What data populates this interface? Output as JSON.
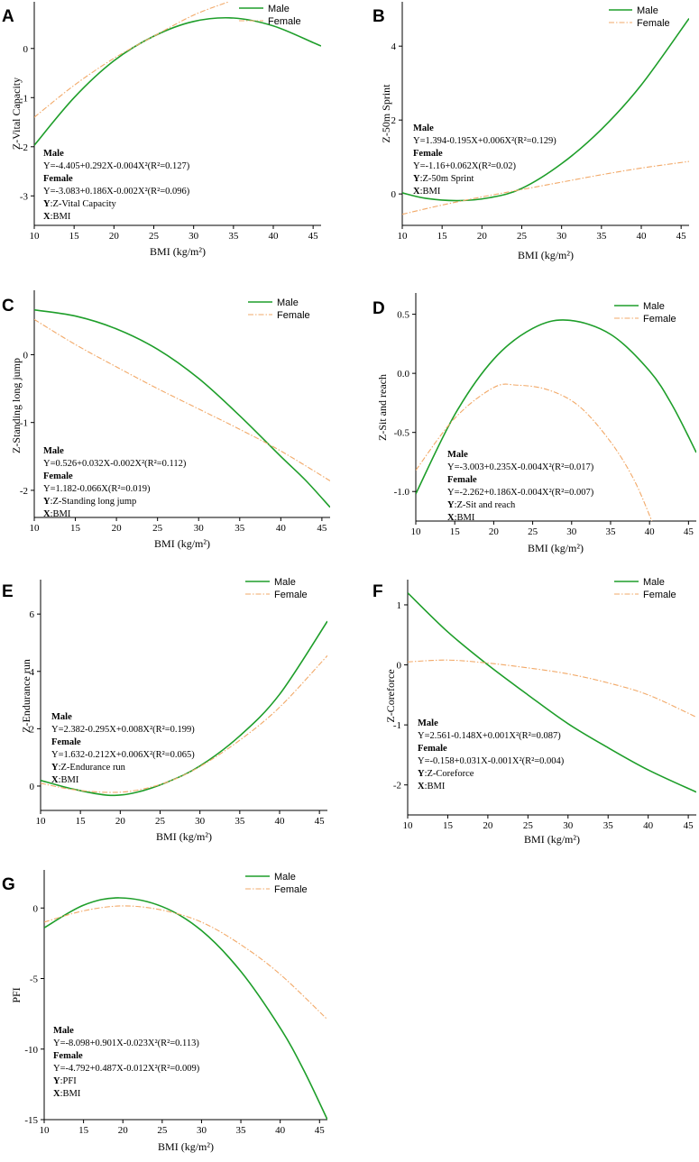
{
  "chart_data": [
    {
      "panel": "A",
      "type": "line",
      "ylabel": "Z-Vital Capacity",
      "xlabel": "BMI (kg/m²)",
      "xlim": [
        10,
        46
      ],
      "ylim": [
        -3.6,
        0.95
      ],
      "xticks": [
        "10",
        "15",
        "20",
        "25",
        "30",
        "35",
        "40",
        "45"
      ],
      "yticks": [
        "-3",
        "-2",
        "-1",
        "0"
      ],
      "legend": [
        "Male",
        "Female"
      ],
      "series": [
        {
          "name": "Male",
          "points": [
            [
              10,
              -1.97
            ],
            [
              15,
              -1.0
            ],
            [
              20,
              -0.25
            ],
            [
              25,
              0.25
            ],
            [
              30,
              0.55
            ],
            [
              35,
              0.62
            ],
            [
              40,
              0.46
            ],
            [
              45,
              0.12
            ],
            [
              46,
              0.05
            ]
          ]
        },
        {
          "name": "Female",
          "points": [
            [
              10,
              -1.4
            ],
            [
              15,
              -0.75
            ],
            [
              20,
              -0.2
            ],
            [
              25,
              0.25
            ],
            [
              30,
              0.68
            ],
            [
              34.4,
              0.95
            ]
          ]
        }
      ],
      "annotations": {
        "male_title": "Male",
        "male_eq": "Y=-4.405+0.292X-0.004X²(R²=0.127)",
        "female_title": "Female",
        "female_eq": "Y=-3.083+0.186X-0.002X²(R²=0.096)",
        "y_key": "Y",
        "y_text": ":Z-Vital Capacity",
        "x_key": "X",
        "x_text": ":BMI"
      }
    },
    {
      "panel": "B",
      "type": "line",
      "ylabel": "Z-50m Sprint",
      "xlabel": "BMI (kg/m²)",
      "xlim": [
        10,
        46
      ],
      "ylim": [
        -0.85,
        5.2
      ],
      "xticks": [
        "10",
        "15",
        "20",
        "25",
        "30",
        "35",
        "40",
        "45"
      ],
      "yticks": [
        "0",
        "2",
        "4"
      ],
      "legend": [
        "Male",
        "Female"
      ],
      "series": [
        {
          "name": "Male",
          "points": [
            [
              10,
              0.03
            ],
            [
              13,
              -0.12
            ],
            [
              17,
              -0.18
            ],
            [
              21,
              -0.1
            ],
            [
              25,
              0.15
            ],
            [
              30,
              0.82
            ],
            [
              35,
              1.75
            ],
            [
              40,
              2.95
            ],
            [
              46,
              4.75
            ]
          ]
        },
        {
          "name": "Female",
          "points": [
            [
              10,
              -0.55
            ],
            [
              15,
              -0.3
            ],
            [
              20,
              -0.08
            ],
            [
              25,
              0.12
            ],
            [
              30,
              0.32
            ],
            [
              35,
              0.52
            ],
            [
              40,
              0.7
            ],
            [
              46,
              0.88
            ]
          ]
        }
      ],
      "annotations": {
        "male_title": "Male",
        "male_eq": "Y=1.394-0.195X+0.006X²(R²=0.129)",
        "female_title": "Female",
        "female_eq": "Y=-1.16+0.062X(R²=0.02)",
        "y_key": "Y",
        "y_text": ":Z-50m Sprint",
        "x_key": "X",
        "x_text": ":BMI"
      }
    },
    {
      "panel": "C",
      "type": "line",
      "ylabel": "Z-Standing long jump",
      "xlabel": "BMI (kg/m²)",
      "xlim": [
        10,
        46
      ],
      "ylim": [
        -2.4,
        0.95
      ],
      "xticks": [
        "10",
        "15",
        "20",
        "25",
        "30",
        "35",
        "40",
        "45"
      ],
      "yticks": [
        "-2",
        "-1",
        "0"
      ],
      "legend": [
        "Male",
        "Female"
      ],
      "series": [
        {
          "name": "Male",
          "points": [
            [
              10,
              0.66
            ],
            [
              15,
              0.57
            ],
            [
              20,
              0.38
            ],
            [
              25,
              0.08
            ],
            [
              30,
              -0.35
            ],
            [
              35,
              -0.9
            ],
            [
              40,
              -1.5
            ],
            [
              43,
              -1.85
            ],
            [
              46,
              -2.25
            ]
          ]
        },
        {
          "name": "Female",
          "points": [
            [
              10,
              0.52
            ],
            [
              15,
              0.15
            ],
            [
              20,
              -0.18
            ],
            [
              25,
              -0.5
            ],
            [
              30,
              -0.8
            ],
            [
              35,
              -1.1
            ],
            [
              40,
              -1.42
            ],
            [
              46,
              -1.86
            ]
          ]
        }
      ],
      "annotations": {
        "male_title": "Male",
        "male_eq": "Y=0.526+0.032X-0.002X²(R²=0.112)",
        "female_title": "Female",
        "female_eq": "Y=1.182-0.066X(R²=0.019)",
        "y_key": "Y",
        "y_text": ":Z-Standing long jump",
        "x_key": "X",
        "x_text": ":BMI"
      }
    },
    {
      "panel": "D",
      "type": "line",
      "ylabel": "Z-Sit and reach",
      "xlabel": "BMI (kg/m²)",
      "xlim": [
        10,
        46
      ],
      "ylim": [
        -1.25,
        0.68
      ],
      "xticks": [
        "10",
        "15",
        "20",
        "25",
        "30",
        "35",
        "40",
        "45"
      ],
      "yticks": [
        "-1.0",
        "-0.5",
        "0.0",
        "0.5"
      ],
      "legend": [
        "Male",
        "Female"
      ],
      "series": [
        {
          "name": "Male",
          "points": [
            [
              10,
              -1.02
            ],
            [
              15,
              -0.35
            ],
            [
              20,
              0.12
            ],
            [
              25,
              0.38
            ],
            [
              29.5,
              0.45
            ],
            [
              35,
              0.33
            ],
            [
              40,
              0.02
            ],
            [
              43,
              -0.28
            ],
            [
              46,
              -0.67
            ]
          ]
        },
        {
          "name": "Female",
          "points": [
            [
              10,
              -0.82
            ],
            [
              15,
              -0.38
            ],
            [
              20,
              -0.12
            ],
            [
              23,
              -0.1
            ],
            [
              27,
              -0.14
            ],
            [
              31,
              -0.28
            ],
            [
              35,
              -0.58
            ],
            [
              38,
              -0.9
            ],
            [
              40.3,
              -1.25
            ]
          ]
        }
      ],
      "annotations": {
        "male_title": "Male",
        "male_eq": "Y=-3.003+0.235X-0.004X²(R²=0.017)",
        "female_title": "Female",
        "female_eq": "Y=-2.262+0.186X-0.004X²(R²=0.007)",
        "y_key": "Y",
        "y_text": ":Z-Sit and reach",
        "x_key": "X",
        "x_text": ":BMI"
      }
    },
    {
      "panel": "E",
      "type": "line",
      "ylabel": "Z-Endurance run",
      "xlabel": "BMI (kg/m²)",
      "xlim": [
        10,
        46
      ],
      "ylim": [
        -0.85,
        7.2
      ],
      "xticks": [
        "10",
        "15",
        "20",
        "25",
        "30",
        "35",
        "40",
        "45"
      ],
      "yticks": [
        "0",
        "2",
        "4",
        "6"
      ],
      "legend": [
        "Male",
        "Female"
      ],
      "series": [
        {
          "name": "Male",
          "points": [
            [
              10,
              0.2
            ],
            [
              14,
              -0.1
            ],
            [
              18.5,
              -0.32
            ],
            [
              22,
              -0.22
            ],
            [
              26,
              0.15
            ],
            [
              30,
              0.7
            ],
            [
              35,
              1.75
            ],
            [
              40,
              3.2
            ],
            [
              46,
              5.75
            ]
          ]
        },
        {
          "name": "Female",
          "points": [
            [
              10,
              0.1
            ],
            [
              14,
              -0.12
            ],
            [
              18.5,
              -0.22
            ],
            [
              22,
              -0.15
            ],
            [
              26,
              0.15
            ],
            [
              30,
              0.68
            ],
            [
              35,
              1.6
            ],
            [
              40,
              2.75
            ],
            [
              46,
              4.55
            ]
          ]
        }
      ],
      "annotations": {
        "male_title": "Male",
        "male_eq": "Y=2.382-0.295X+0.008X²(R²=0.199)",
        "female_title": "Female",
        "female_eq": "Y=1.632-0.212X+0.006X²(R²=0.065)",
        "y_key": "Y",
        "y_text": ":Z-Endurance run",
        "x_key": "X",
        "x_text": ":BMI"
      }
    },
    {
      "panel": "F",
      "type": "line",
      "ylabel": "Z-Coreforce",
      "xlabel": "BMI (kg/m²)",
      "xlim": [
        10,
        46
      ],
      "ylim": [
        -2.5,
        1.42
      ],
      "xticks": [
        "10",
        "15",
        "20",
        "25",
        "30",
        "35",
        "40",
        "45"
      ],
      "yticks": [
        "-2",
        "-1",
        "0",
        "1"
      ],
      "legend": [
        "Male",
        "Female"
      ],
      "series": [
        {
          "name": "Male",
          "points": [
            [
              10,
              1.2
            ],
            [
              15,
              0.55
            ],
            [
              20,
              0.0
            ],
            [
              25,
              -0.5
            ],
            [
              30,
              -0.98
            ],
            [
              35,
              -1.38
            ],
            [
              40,
              -1.75
            ],
            [
              46,
              -2.12
            ]
          ]
        },
        {
          "name": "Female",
          "points": [
            [
              10,
              0.05
            ],
            [
              15,
              0.08
            ],
            [
              20,
              0.03
            ],
            [
              25,
              -0.05
            ],
            [
              30,
              -0.15
            ],
            [
              35,
              -0.3
            ],
            [
              40,
              -0.5
            ],
            [
              46,
              -0.87
            ]
          ]
        }
      ],
      "annotations": {
        "male_title": "Male",
        "male_eq": "Y=2.561-0.148X+0.001X²(R²=0.087)",
        "female_title": "Female",
        "female_eq": "Y=-0.158+0.031X-0.001X²(R²=0.004)",
        "y_key": "Y",
        "y_text": ":Z-Coreforce",
        "x_key": "X",
        "x_text": ":BMI"
      }
    },
    {
      "panel": "G",
      "type": "line",
      "ylabel": "PFI",
      "xlabel": "BMI (kg/m²)",
      "xlim": [
        10,
        46
      ],
      "ylim": [
        -15,
        2.7
      ],
      "xticks": [
        "10",
        "15",
        "20",
        "25",
        "30",
        "35",
        "40",
        "45"
      ],
      "yticks": [
        "-15",
        "-10",
        "-5",
        "0"
      ],
      "legend": [
        "Male",
        "Female"
      ],
      "series": [
        {
          "name": "Male",
          "points": [
            [
              10,
              -1.4
            ],
            [
              15,
              0.2
            ],
            [
              19.6,
              0.72
            ],
            [
              25,
              0.1
            ],
            [
              30,
              -1.6
            ],
            [
              35,
              -4.5
            ],
            [
              40,
              -8.5
            ],
            [
              43,
              -11.5
            ],
            [
              46,
              -15
            ]
          ]
        },
        {
          "name": "Female",
          "points": [
            [
              10,
              -1.0
            ],
            [
              15,
              -0.2
            ],
            [
              20,
              0.15
            ],
            [
              25,
              -0.15
            ],
            [
              30,
              -1.0
            ],
            [
              35,
              -2.6
            ],
            [
              40,
              -4.7
            ],
            [
              46,
              -7.9
            ]
          ]
        }
      ],
      "annotations": {
        "male_title": "Male",
        "male_eq": "Y=-8.098+0.901X-0.023X²(R²=0.113)",
        "female_title": "Female",
        "female_eq": "Y=-4.792+0.487X-0.012X²(R²=0.009)",
        "y_key": "Y",
        "y_text": ":PFI",
        "x_key": "X",
        "x_text": ":BMI"
      }
    }
  ],
  "colors": {
    "male": "#1e9e2a",
    "female": "#f2a968"
  }
}
